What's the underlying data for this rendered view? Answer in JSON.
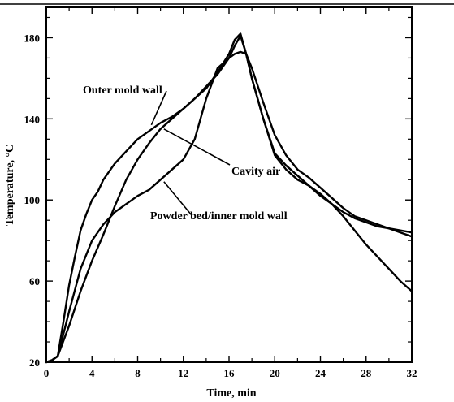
{
  "chart_data": {
    "type": "line",
    "xlabel": "Time, min",
    "ylabel": "Temperature, °C",
    "xlim": [
      0,
      32
    ],
    "ylim": [
      20,
      195
    ],
    "xticks": [
      0,
      4,
      8,
      12,
      16,
      20,
      24,
      28,
      32
    ],
    "yticks": [
      20,
      60,
      100,
      140,
      180
    ],
    "grid": false,
    "series": [
      {
        "name": "Outer mold wall",
        "x": [
          0,
          0.5,
          1,
          1.5,
          2,
          2.5,
          3,
          3.5,
          4,
          4.5,
          5,
          5.5,
          6,
          7,
          8,
          9,
          10,
          11,
          12,
          13,
          14,
          15,
          16,
          16.5,
          17,
          17.5,
          18,
          19,
          20,
          21,
          22,
          23,
          24,
          25,
          26,
          27,
          28,
          29,
          30,
          31,
          32
        ],
        "y": [
          20,
          21,
          23,
          40,
          58,
          72,
          85,
          93,
          100,
          104,
          110,
          114,
          118,
          124,
          130,
          134,
          138,
          141,
          145,
          150,
          155,
          163,
          172,
          179,
          182,
          172,
          160,
          140,
          122,
          115,
          110,
          107,
          103,
          98,
          92,
          85,
          78,
          72,
          66,
          60,
          55
        ]
      },
      {
        "name": "Cavity air",
        "x": [
          0,
          0.5,
          1,
          2,
          3,
          4,
          5,
          6,
          7,
          8,
          9,
          10,
          11,
          12,
          13,
          14,
          15,
          16,
          16.5,
          17,
          17.5,
          18,
          19,
          20,
          21,
          22,
          23,
          24,
          25,
          26,
          27,
          28,
          29,
          30,
          31,
          32
        ],
        "y": [
          20,
          21,
          23,
          38,
          55,
          70,
          83,
          97,
          110,
          120,
          128,
          135,
          140,
          145,
          150,
          156,
          162,
          170,
          176,
          181,
          172,
          160,
          140,
          123,
          117,
          112,
          107,
          102,
          98,
          94,
          91,
          89,
          87,
          86,
          85,
          84
        ]
      },
      {
        "name": "Powder bed/inner mold wall",
        "x": [
          0,
          0.5,
          1,
          2,
          3,
          4,
          5,
          6,
          7,
          8,
          9,
          10,
          11,
          12,
          13,
          14,
          15,
          16,
          16.5,
          17,
          17.5,
          18,
          19,
          20,
          21,
          22,
          23,
          24,
          25,
          26,
          27,
          28,
          29,
          30,
          31,
          32
        ],
        "y": [
          20,
          21,
          23,
          45,
          66,
          80,
          88,
          94,
          98,
          102,
          105,
          110,
          115,
          120,
          130,
          150,
          165,
          170,
          172,
          173,
          172,
          165,
          148,
          132,
          122,
          115,
          111,
          106,
          101,
          96,
          92,
          90,
          88,
          86,
          84,
          82
        ]
      }
    ],
    "annotations": [
      {
        "text": "Outer mold wall",
        "series": "Outer mold wall",
        "at": [
          9.2,
          137
        ]
      },
      {
        "text": "Cavity air",
        "series": "Cavity air",
        "at": [
          10.3,
          135
        ]
      },
      {
        "text": "Powder bed/inner mold wall",
        "series": "Powder bed/inner mold wall",
        "at": [
          10.3,
          109
        ]
      }
    ]
  }
}
